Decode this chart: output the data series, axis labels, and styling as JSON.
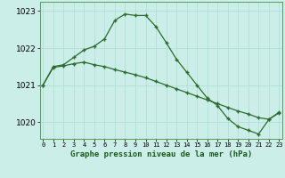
{
  "line1_x": [
    0,
    1,
    2,
    3,
    4,
    5,
    6,
    7,
    8,
    9,
    10,
    11,
    12,
    13,
    14,
    15,
    16,
    17,
    18,
    19,
    20,
    21,
    22,
    23
  ],
  "line1_y": [
    1021.0,
    1021.5,
    1021.55,
    1021.75,
    1021.95,
    1022.05,
    1022.25,
    1022.75,
    1022.92,
    1022.88,
    1022.88,
    1022.58,
    1022.15,
    1021.7,
    1021.35,
    1021.0,
    1020.65,
    1020.45,
    1020.1,
    1019.88,
    1019.78,
    1019.68,
    1020.07,
    1020.27
  ],
  "line2_x": [
    0,
    1,
    2,
    3,
    4,
    5,
    6,
    7,
    8,
    9,
    10,
    11,
    12,
    13,
    14,
    15,
    16,
    17,
    18,
    19,
    20,
    21,
    22,
    23
  ],
  "line2_y": [
    1021.0,
    1021.48,
    1021.52,
    1021.58,
    1021.62,
    1021.55,
    1021.5,
    1021.42,
    1021.35,
    1021.28,
    1021.2,
    1021.1,
    1021.0,
    1020.9,
    1020.8,
    1020.7,
    1020.6,
    1020.5,
    1020.4,
    1020.3,
    1020.22,
    1020.12,
    1020.08,
    1020.25
  ],
  "bg_color": "#cceee8",
  "grid_color": "#aaddcc",
  "line_color": "#2d6a2d",
  "xlabel": "Graphe pression niveau de la mer (hPa)",
  "yticks": [
    1020,
    1021,
    1022,
    1023
  ],
  "xtick_labels": [
    "0",
    "1",
    "2",
    "3",
    "4",
    "5",
    "6",
    "7",
    "8",
    "9",
    "10",
    "11",
    "12",
    "13",
    "14",
    "15",
    "16",
    "17",
    "18",
    "19",
    "20",
    "21",
    "22",
    "23"
  ],
  "ylim": [
    1019.55,
    1023.25
  ],
  "xlim": [
    -0.3,
    23.3
  ]
}
